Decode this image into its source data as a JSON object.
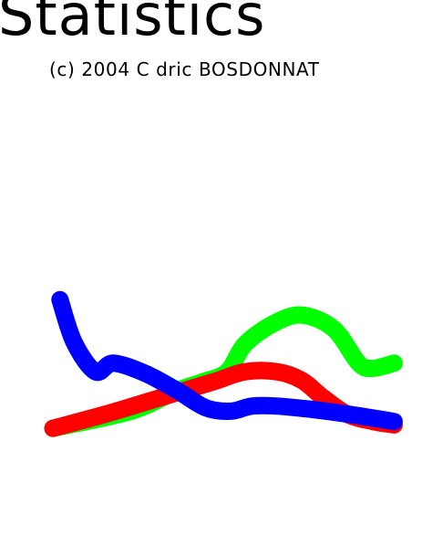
{
  "title": "Statistics",
  "subtitle": "(c) 2004 C dric BOSDONNAT",
  "chart_data": {
    "type": "line",
    "title": "Statistics",
    "subtitle": "(c) 2004 C dric BOSDONNAT",
    "xlabel": "",
    "ylabel": "",
    "xlim": [
      0,
      10
    ],
    "ylim": [
      0,
      10
    ],
    "grid": false,
    "legend": "none",
    "axes_visible": false,
    "line_style": "thick-smooth",
    "series": [
      {
        "color": "#00ff00",
        "x": [
          0.0,
          2.2,
          3.5,
          4.2,
          4.9,
          5.4,
          6.2,
          7.0,
          7.9,
          8.6,
          9.0,
          9.6
        ],
        "y": [
          1.0,
          2.0,
          3.2,
          3.7,
          4.3,
          5.9,
          7.1,
          7.6,
          6.8,
          4.8,
          4.5,
          4.8
        ]
      },
      {
        "color": "#ff0000",
        "x": [
          0.0,
          1.6,
          3.2,
          4.5,
          5.4,
          6.3,
          7.0,
          7.6,
          8.3,
          9.0,
          9.6
        ],
        "y": [
          1.0,
          1.9,
          2.9,
          3.7,
          4.3,
          4.3,
          3.8,
          2.8,
          1.8,
          1.4,
          1.2
        ]
      },
      {
        "color": "#0000ff",
        "x": [
          0.2,
          0.6,
          1.2,
          1.7,
          2.6,
          3.5,
          4.3,
          5.0,
          5.6,
          6.3,
          7.3,
          8.4,
          9.6
        ],
        "y": [
          8.5,
          6.0,
          4.3,
          4.8,
          4.2,
          3.2,
          2.2,
          2.0,
          2.3,
          2.3,
          2.1,
          1.8,
          1.4
        ]
      }
    ]
  }
}
